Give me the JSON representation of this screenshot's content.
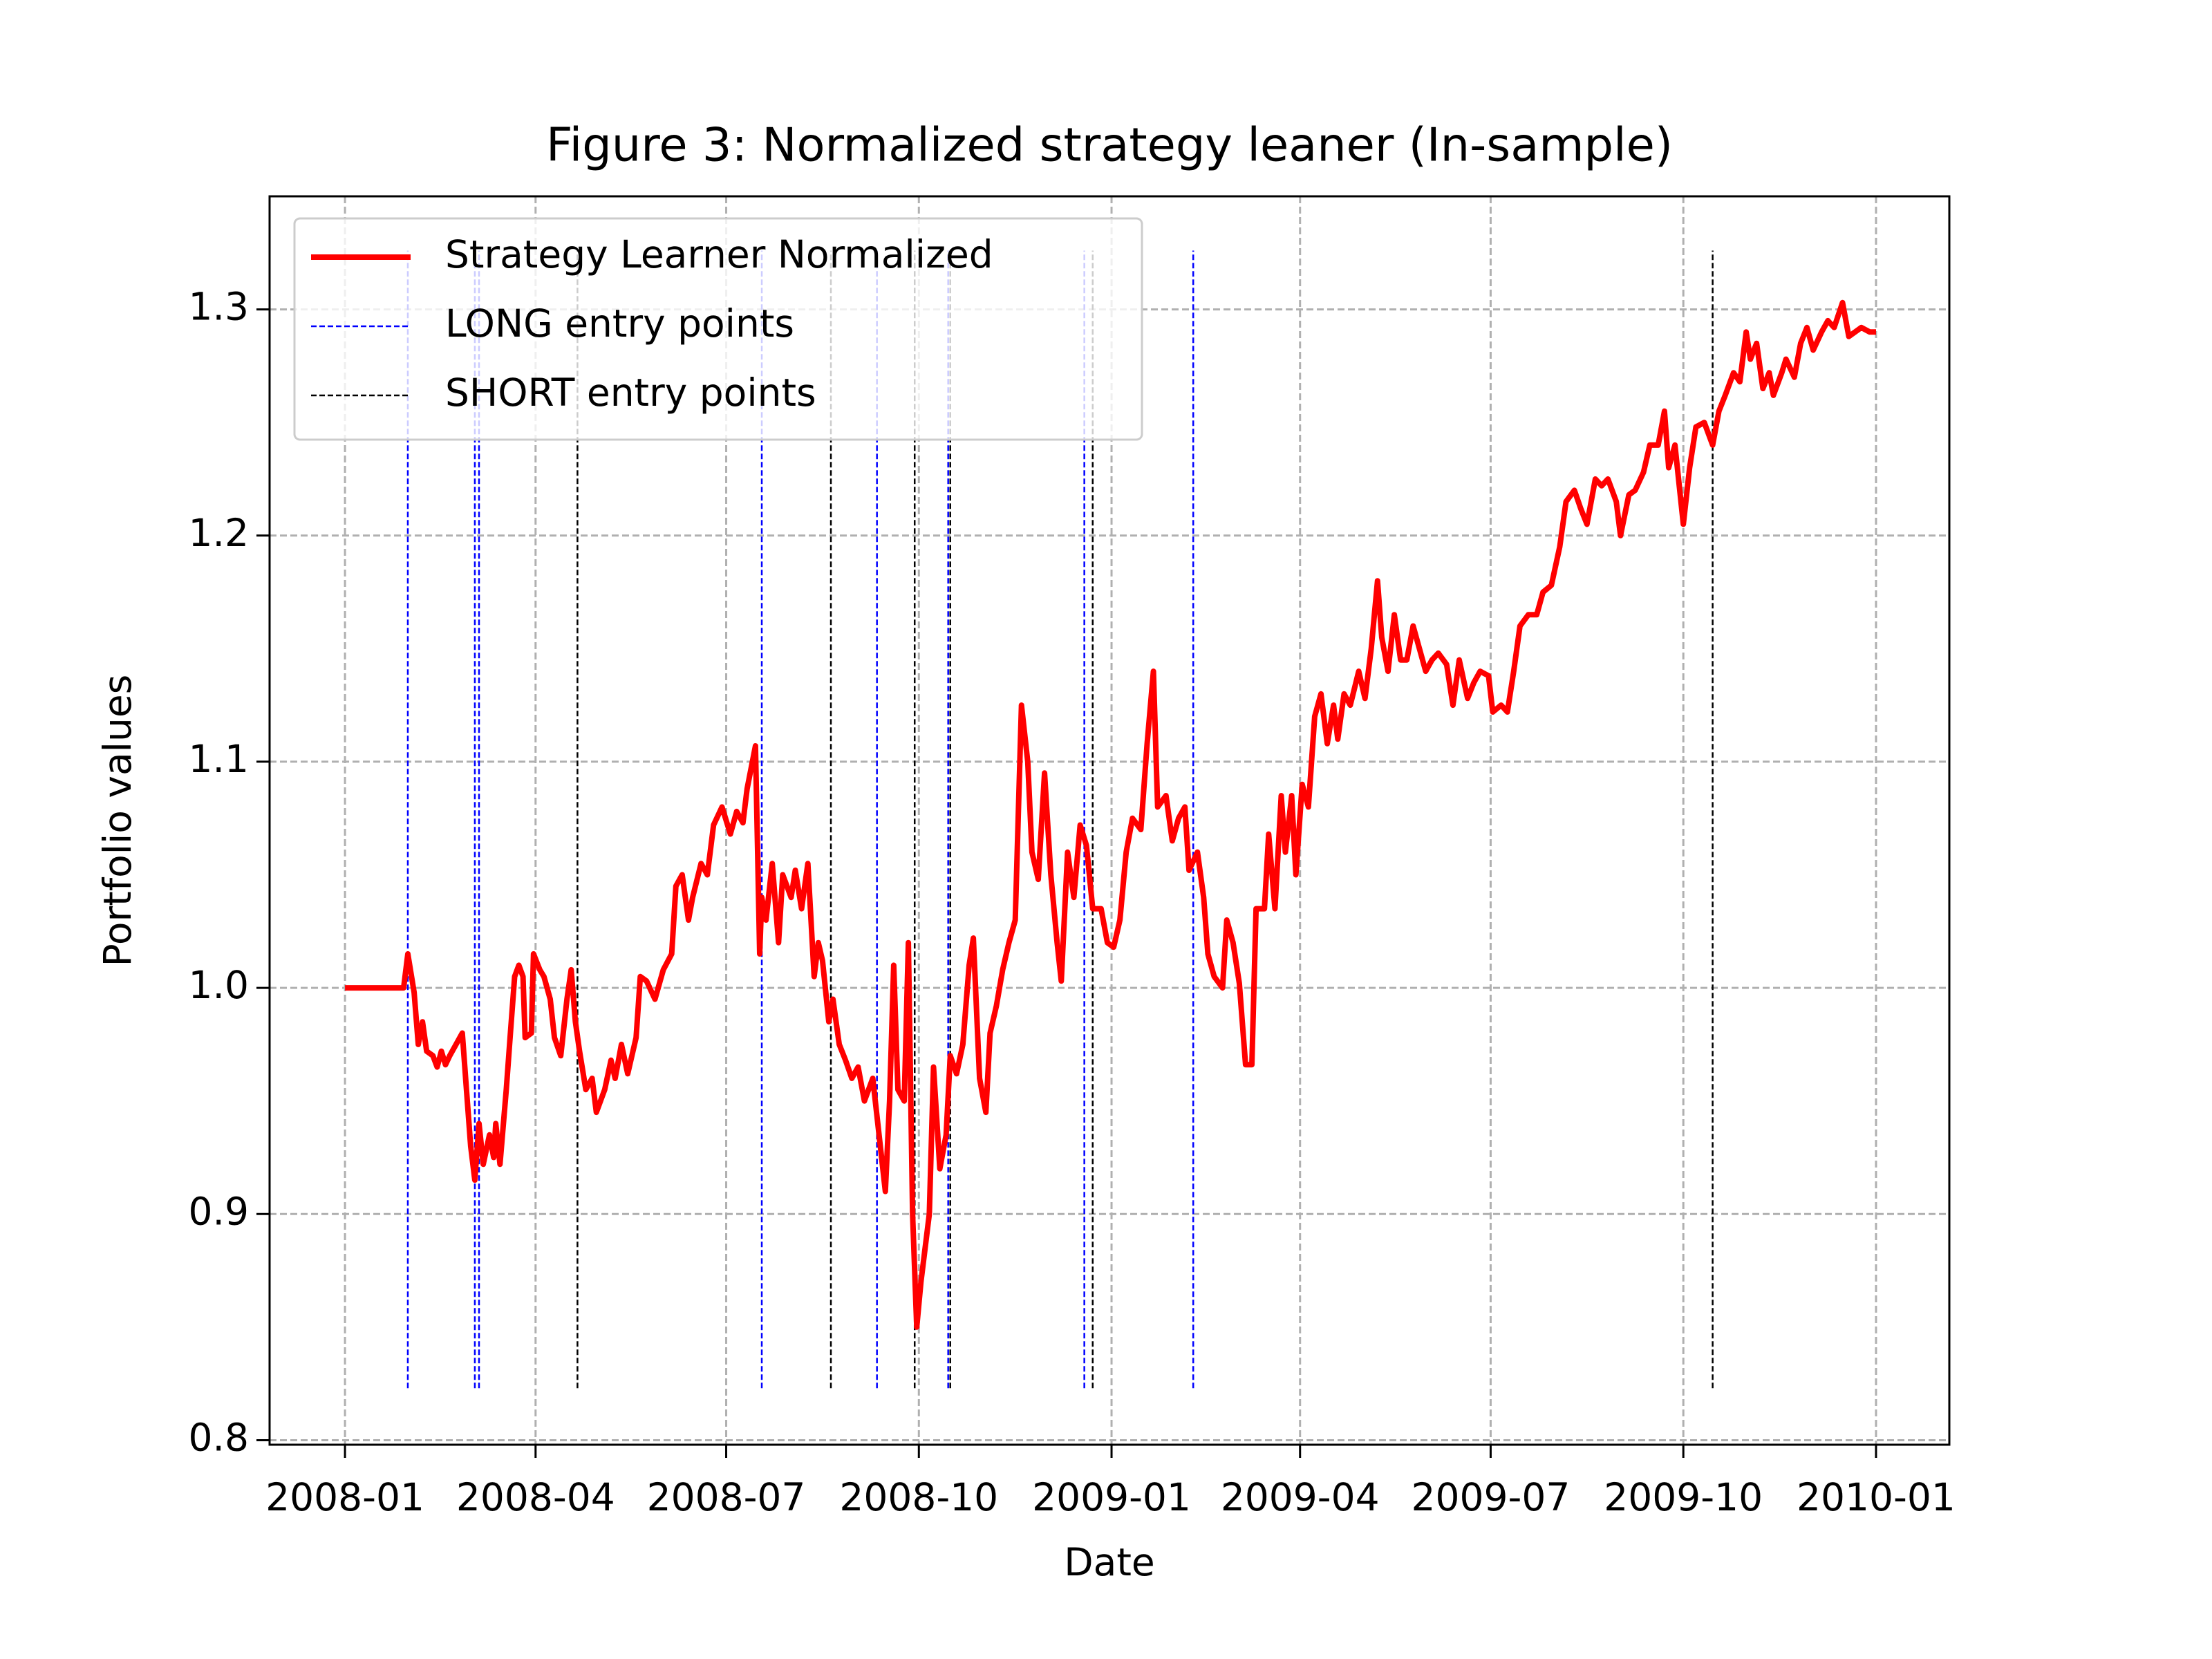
{
  "chart_data": {
    "type": "line",
    "title": "Figure 3: Normalized strategy leaner (In-sample)",
    "xlabel": "Date",
    "ylabel": "Portfolio values",
    "xlim": [
      -36,
      766
    ],
    "xticks": [
      {
        "value": 0,
        "label": "2008-01"
      },
      {
        "value": 91,
        "label": "2008-04"
      },
      {
        "value": 182,
        "label": "2008-07"
      },
      {
        "value": 274,
        "label": "2008-10"
      },
      {
        "value": 366,
        "label": "2009-01"
      },
      {
        "value": 456,
        "label": "2009-04"
      },
      {
        "value": 547,
        "label": "2009-07"
      },
      {
        "value": 639,
        "label": "2009-10"
      },
      {
        "value": 731,
        "label": "2010-01"
      }
    ],
    "ylim": [
      0.798,
      1.35
    ],
    "yticks": [
      0.8,
      0.9,
      {
        "value": 1,
        "label": "1.0"
      },
      1.1,
      1.2,
      1.3
    ],
    "grid": true,
    "legend": "upper left",
    "series": [
      {
        "name": "Strategy Learner Normalized",
        "color": "#ff0000",
        "style": "line",
        "x": [
          0,
          28,
          30,
          33,
          35,
          37,
          39,
          42,
          44,
          46,
          48,
          50,
          53,
          56,
          58,
          60,
          62,
          64,
          66,
          69,
          71,
          72,
          74,
          77,
          79,
          81,
          83,
          85,
          86,
          89,
          90,
          93,
          95,
          98,
          100,
          103,
          106,
          108,
          110,
          112,
          115,
          118,
          120,
          124,
          127,
          129,
          132,
          135,
          139,
          141,
          144,
          148,
          152,
          156,
          158,
          161,
          164,
          166,
          170,
          173,
          176,
          180,
          184,
          187,
          190,
          192,
          196,
          198,
          199,
          201,
          204,
          207,
          209,
          213,
          215,
          218,
          221,
          224,
          226,
          228,
          231,
          233,
          236,
          239,
          242,
          245,
          248,
          252,
          255,
          258,
          260,
          262,
          264,
          267,
          269,
          271,
          273,
          275,
          279,
          281,
          284,
          287,
          289,
          292,
          295,
          298,
          300,
          303,
          306,
          308,
          311,
          314,
          317,
          320,
          323,
          326,
          328,
          331,
          334,
          337,
          340,
          342,
          345,
          348,
          351,
          354,
          357,
          361,
          364,
          367,
          370,
          373,
          376,
          380,
          383,
          386,
          388,
          392,
          395,
          398,
          401,
          403,
          407,
          410,
          412,
          415,
          419,
          421,
          424,
          427,
          430,
          433,
          435,
          439,
          441,
          444,
          447,
          449,
          452,
          454,
          457,
          460,
          463,
          466,
          469,
          472,
          474,
          477,
          480,
          484,
          487,
          490,
          493,
          495,
          498,
          501,
          504,
          507,
          510,
          513,
          516,
          519,
          522,
          526,
          529,
          532,
          536,
          539,
          542,
          546,
          548,
          552,
          555,
          558,
          561,
          565,
          569,
          572,
          576,
          580,
          583,
          587,
          590,
          593,
          597,
          600,
          603,
          607,
          609,
          613,
          616,
          620,
          623,
          627,
          630,
          632,
          635,
          639,
          642,
          645,
          649,
          653,
          656,
          659,
          663,
          666,
          669,
          671,
          674,
          677,
          680,
          682,
          686,
          688,
          692,
          695,
          698,
          701,
          705,
          708,
          711,
          715,
          718,
          721,
          724,
          728,
          731
        ],
        "values": [
          1.0,
          1.0,
          1.015,
          0.998,
          0.975,
          0.985,
          0.972,
          0.97,
          0.965,
          0.972,
          0.966,
          0.97,
          0.975,
          0.98,
          0.955,
          0.93,
          0.915,
          0.94,
          0.922,
          0.935,
          0.925,
          0.94,
          0.922,
          0.955,
          0.98,
          1.005,
          1.01,
          1.005,
          0.978,
          0.98,
          1.015,
          1.008,
          1.005,
          0.995,
          0.978,
          0.97,
          0.995,
          1.008,
          0.985,
          0.972,
          0.955,
          0.96,
          0.945,
          0.955,
          0.968,
          0.96,
          0.975,
          0.962,
          0.978,
          1.005,
          1.003,
          0.995,
          1.008,
          1.015,
          1.045,
          1.05,
          1.03,
          1.04,
          1.055,
          1.05,
          1.072,
          1.08,
          1.068,
          1.078,
          1.073,
          1.088,
          1.107,
          1.015,
          1.04,
          1.03,
          1.055,
          1.02,
          1.05,
          1.04,
          1.052,
          1.035,
          1.055,
          1.005,
          1.02,
          1.012,
          0.985,
          0.995,
          0.975,
          0.968,
          0.96,
          0.965,
          0.95,
          0.96,
          0.935,
          0.91,
          0.95,
          1.01,
          0.955,
          0.95,
          1.02,
          0.9,
          0.85,
          0.87,
          0.9,
          0.965,
          0.92,
          0.935,
          0.97,
          0.962,
          0.975,
          1.01,
          1.022,
          0.96,
          0.945,
          0.98,
          0.992,
          1.008,
          1.02,
          1.03,
          1.125,
          1.1,
          1.06,
          1.048,
          1.095,
          1.05,
          1.02,
          1.003,
          1.06,
          1.04,
          1.072,
          1.063,
          1.035,
          1.035,
          1.02,
          1.018,
          1.03,
          1.06,
          1.075,
          1.07,
          1.108,
          1.14,
          1.08,
          1.085,
          1.065,
          1.075,
          1.08,
          1.052,
          1.06,
          1.04,
          1.015,
          1.005,
          1.0,
          1.03,
          1.02,
          1.002,
          0.966,
          0.966,
          1.035,
          1.035,
          1.068,
          1.035,
          1.085,
          1.06,
          1.085,
          1.05,
          1.09,
          1.08,
          1.12,
          1.13,
          1.108,
          1.125,
          1.11,
          1.13,
          1.125,
          1.14,
          1.128,
          1.15,
          1.18,
          1.155,
          1.14,
          1.165,
          1.145,
          1.145,
          1.16,
          1.15,
          1.14,
          1.145,
          1.148,
          1.143,
          1.125,
          1.145,
          1.128,
          1.135,
          1.14,
          1.138,
          1.122,
          1.125,
          1.122,
          1.14,
          1.16,
          1.165,
          1.165,
          1.175,
          1.178,
          1.195,
          1.215,
          1.22,
          1.212,
          1.205,
          1.225,
          1.222,
          1.225,
          1.215,
          1.2,
          1.218,
          1.22,
          1.228,
          1.24,
          1.24,
          1.255,
          1.23,
          1.24,
          1.205,
          1.23,
          1.248,
          1.25,
          1.24,
          1.255,
          1.262,
          1.272,
          1.268,
          1.29,
          1.278,
          1.285,
          1.265,
          1.272,
          1.262,
          1.272,
          1.278,
          1.27,
          1.285,
          1.292,
          1.282,
          1.29,
          1.295,
          1.292,
          1.303,
          1.288,
          1.29,
          1.292,
          1.29,
          1.29
        ]
      },
      {
        "name": "LONG entry points",
        "color": "#0000ff",
        "style": "vline",
        "ymin": 0.823,
        "ymax": 1.326,
        "x": [
          30,
          62,
          64,
          199,
          254,
          288,
          353,
          405
        ]
      },
      {
        "name": "SHORT entry points",
        "color": "#000000",
        "style": "vline",
        "ymin": 0.823,
        "ymax": 1.326,
        "x": [
          111,
          232,
          272,
          289,
          357,
          653
        ]
      }
    ]
  }
}
